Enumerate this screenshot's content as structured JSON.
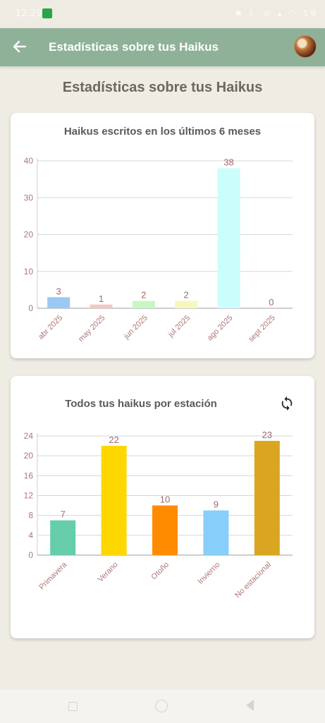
{
  "status_bar": {
    "time": "12:29",
    "battery": "19"
  },
  "app_bar": {
    "title": "Estadísticas sobre tus Haikus"
  },
  "page_title": "Estadísticas sobre tus Haikus",
  "card1": {
    "title": "Haikus escritos en los últimos 6 meses"
  },
  "card2": {
    "title": "Todos tus haikus por estación"
  },
  "colors": {
    "app_bar": "#8fb198",
    "axis_text": "#b07575",
    "value_text": "#a06a6a",
    "card_title": "#5a5a5a"
  },
  "chart_data": [
    {
      "type": "bar",
      "title": "Haikus escritos en los últimos 6 meses",
      "categories": [
        "abr 2025",
        "may 2025",
        "jun 2025",
        "jul 2025",
        "ago 2025",
        "sept 2025"
      ],
      "values": [
        3,
        1,
        2,
        2,
        38,
        0
      ],
      "colors": [
        "#9ac9f4",
        "#f7c6c6",
        "#c6f7c3",
        "#f7f7bf",
        "#ccfdfd",
        "#e0e0e0"
      ],
      "yticks": [
        0,
        10,
        20,
        30,
        40
      ],
      "ylim": [
        0,
        40
      ],
      "grid": true,
      "data_labels": true
    },
    {
      "type": "bar",
      "title": "Todos tus haikus por estación",
      "categories": [
        "Primavera",
        "Verano",
        "Otoño",
        "Invierno",
        "No estacional"
      ],
      "values": [
        7,
        22,
        10,
        9,
        23
      ],
      "colors": [
        "#66cdaa",
        "#ffd700",
        "#ff8c00",
        "#87cefa",
        "#daa520"
      ],
      "yticks": [
        0,
        4,
        8,
        12,
        16,
        20,
        24
      ],
      "ylim": [
        0,
        24
      ],
      "grid": true,
      "data_labels": true
    }
  ]
}
